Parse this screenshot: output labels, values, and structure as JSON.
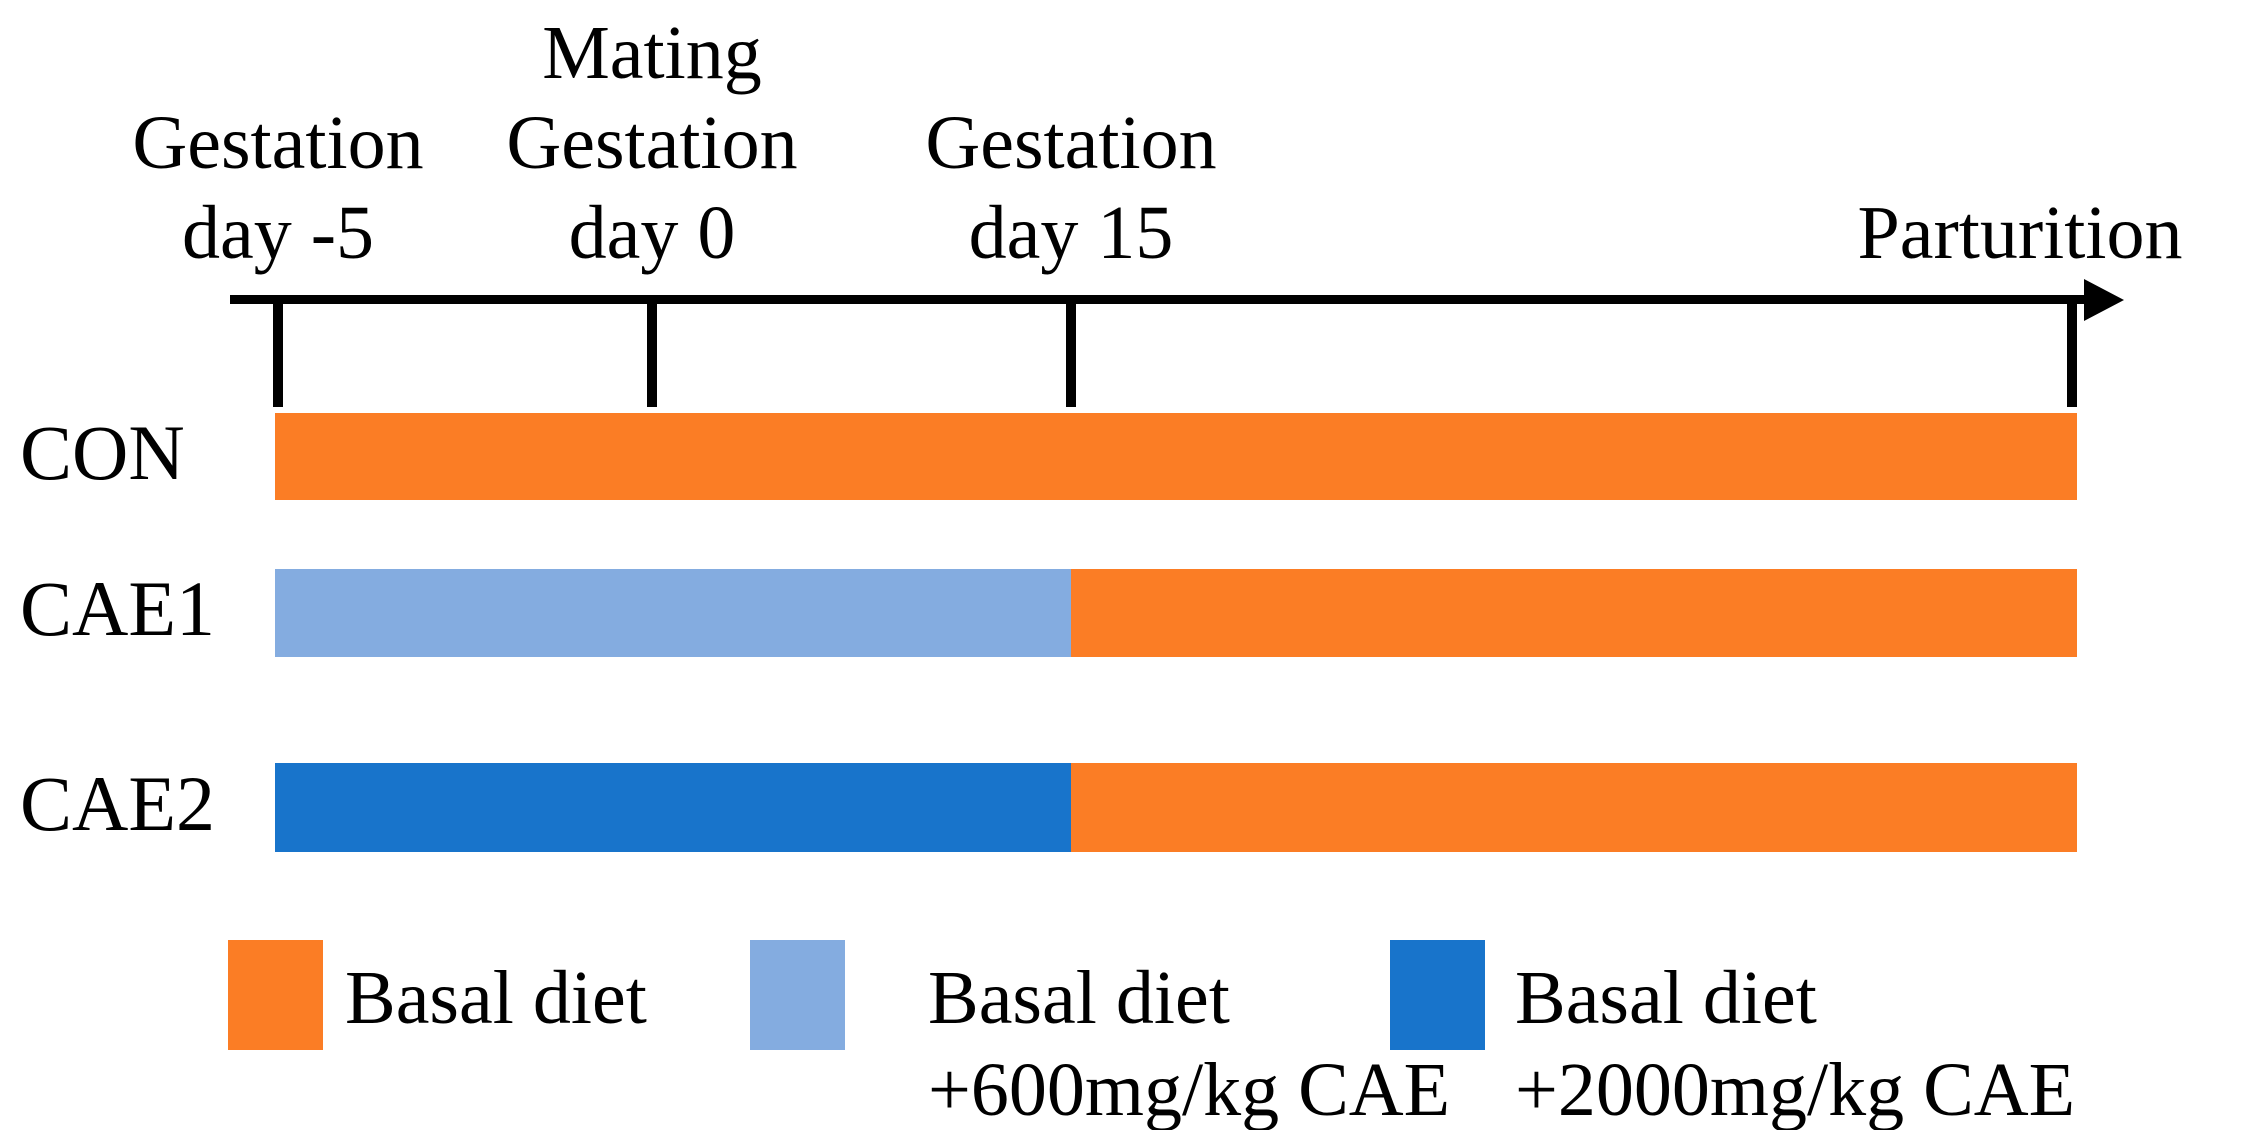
{
  "figure": {
    "axis": {
      "milestones": [
        {
          "lines": [
            "Gestation",
            "day -5"
          ]
        },
        {
          "lines": [
            "Mating",
            "Gestation",
            "day 0"
          ]
        },
        {
          "lines": [
            "Gestation",
            "day 15"
          ]
        },
        {
          "lines": [
            "Parturition"
          ]
        }
      ]
    },
    "colors": {
      "basal": "#FB7D25",
      "cae600": "#84ACE0",
      "cae2000": "#1874CB",
      "axis": "#000000"
    },
    "groups": [
      {
        "name": "CON",
        "segments": [
          {
            "diet": "Basal diet",
            "color": "#FB7D25"
          }
        ]
      },
      {
        "name": "CAE1",
        "segments": [
          {
            "diet": "Basal diet +600mg/kg CAE",
            "color": "#84ACE0"
          },
          {
            "diet": "Basal diet",
            "color": "#FB7D25"
          }
        ]
      },
      {
        "name": "CAE2",
        "segments": [
          {
            "diet": "Basal diet +2000mg/kg CAE",
            "color": "#1874CB"
          },
          {
            "diet": "Basal diet",
            "color": "#FB7D25"
          }
        ]
      }
    ],
    "legend": [
      {
        "color": "#FB7D25",
        "lines": [
          "Basal diet"
        ]
      },
      {
        "color": "#84ACE0",
        "lines": [
          "Basal diet",
          "+600mg/kg CAE"
        ]
      },
      {
        "color": "#1874CB",
        "lines": [
          "Basal diet",
          "+2000mg/kg CAE"
        ]
      }
    ]
  }
}
